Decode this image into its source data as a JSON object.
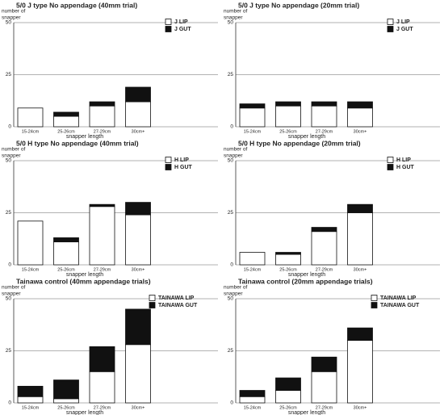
{
  "chart_data": [
    {
      "type": "bar",
      "stacked": true,
      "title": "5/0 J type No appendage (40mm trial)",
      "ylabel": [
        "number of",
        "snapper"
      ],
      "xlabel": "snapper length",
      "categories": [
        "15-24cm",
        "25-26cm",
        "27-29cm",
        "30cm+"
      ],
      "series": [
        {
          "name": "J LIP",
          "color": "#ffffff",
          "values": [
            9,
            5,
            10,
            12
          ]
        },
        {
          "name": "J GUT",
          "color": "#111111",
          "values": [
            0,
            2,
            2,
            7
          ]
        }
      ],
      "ylim": [
        0,
        50
      ],
      "yticks": [
        0,
        25,
        50
      ],
      "grid": true
    },
    {
      "type": "bar",
      "stacked": true,
      "title": "5/0 J type No appendage (20mm trial)",
      "ylabel": [
        "number of",
        "snapper"
      ],
      "xlabel": "snapper length",
      "categories": [
        "15-24cm",
        "25-26cm",
        "27-29cm",
        "30cm+"
      ],
      "series": [
        {
          "name": "J LIP",
          "color": "#ffffff",
          "values": [
            9,
            10,
            10,
            9
          ]
        },
        {
          "name": "J GUT",
          "color": "#111111",
          "values": [
            2,
            2,
            2,
            3
          ]
        }
      ],
      "ylim": [
        0,
        50
      ],
      "yticks": [
        0,
        25,
        50
      ],
      "grid": true
    },
    {
      "type": "bar",
      "stacked": true,
      "title": "5/0 H type No appendage (40mm trial)",
      "ylabel": [
        "number of",
        "snapper"
      ],
      "xlabel": "snapper length",
      "categories": [
        "15-24cm",
        "25-26cm",
        "27-29cm",
        "30cm+"
      ],
      "series": [
        {
          "name": "H LIP",
          "color": "#ffffff",
          "values": [
            21,
            11,
            28,
            24
          ]
        },
        {
          "name": "H GUT",
          "color": "#111111",
          "values": [
            0,
            2,
            1,
            6
          ]
        }
      ],
      "ylim": [
        0,
        50
      ],
      "yticks": [
        0,
        25,
        50
      ],
      "grid": true
    },
    {
      "type": "bar",
      "stacked": true,
      "title": "5/0 H type No appendage (20mm trial)",
      "ylabel": [
        "number of",
        "snapper"
      ],
      "xlabel": "snapper length",
      "categories": [
        "15-24cm",
        "25-26cm",
        "27-29cm",
        "30cm+"
      ],
      "series": [
        {
          "name": "H LIP",
          "color": "#ffffff",
          "values": [
            6,
            5,
            16,
            25
          ]
        },
        {
          "name": "H GUT",
          "color": "#111111",
          "values": [
            0,
            1,
            2,
            4
          ]
        }
      ],
      "ylim": [
        0,
        50
      ],
      "yticks": [
        0,
        25,
        50
      ],
      "grid": true
    },
    {
      "type": "bar",
      "stacked": true,
      "title": "Tainawa control (40mm appendage trials)",
      "ylabel": [
        "number of",
        "snapper"
      ],
      "xlabel": "snapper length",
      "categories": [
        "15-24cm",
        "25-26cm",
        "27-29cm",
        "30cm+"
      ],
      "series": [
        {
          "name": "TAINAWA LIP",
          "color": "#ffffff",
          "values": [
            3,
            2,
            15,
            28
          ]
        },
        {
          "name": "TAINAWA GUT",
          "color": "#111111",
          "values": [
            5,
            9,
            12,
            17
          ]
        }
      ],
      "ylim": [
        0,
        50
      ],
      "yticks": [
        0,
        25,
        50
      ],
      "grid": true
    },
    {
      "type": "bar",
      "stacked": true,
      "title": "Tainawa control (20mm appendage trials)",
      "ylabel": [
        "number of",
        "snapper"
      ],
      "xlabel": "snapper length",
      "categories": [
        "15-24cm",
        "25-26cm",
        "27-29cm",
        "30cm+"
      ],
      "series": [
        {
          "name": "TAINAWA LIP",
          "color": "#ffffff",
          "values": [
            3,
            6,
            15,
            30
          ]
        },
        {
          "name": "TAINAWA GUT",
          "color": "#111111",
          "values": [
            3,
            6,
            7,
            6
          ]
        }
      ],
      "ylim": [
        0,
        50
      ],
      "yticks": [
        0,
        25,
        50
      ],
      "grid": true
    }
  ]
}
